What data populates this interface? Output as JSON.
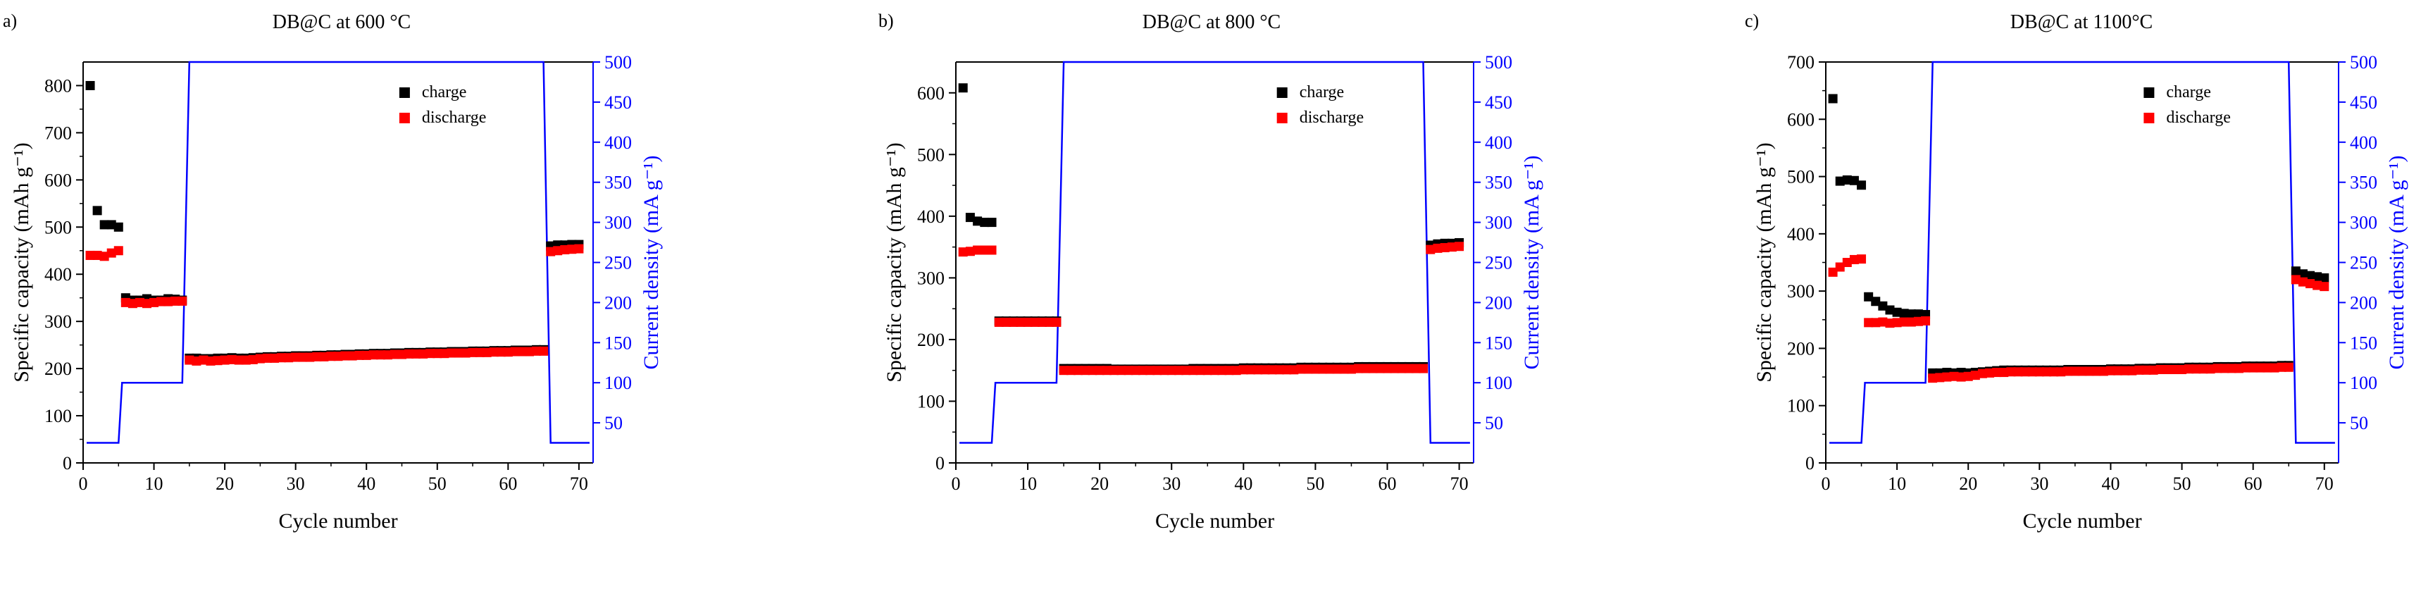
{
  "colors": {
    "charge": "#000000",
    "discharge": "#ff0000",
    "current": "#0000ff",
    "axis": "#000000"
  },
  "chart_data": [
    {
      "type": "scatter",
      "panel_label": "a)",
      "title": "DB@C at 600 °C",
      "xlabel": "Cycle number",
      "ylabel": "Specific capacity (mAh g⁻¹)",
      "y2label": "Current density (mA g⁻¹)",
      "xlim": [
        0,
        72
      ],
      "ylim": [
        0,
        850
      ],
      "y2lim": [
        0,
        500
      ],
      "xticks": [
        0,
        10,
        20,
        30,
        40,
        50,
        60,
        70
      ],
      "yticks": [
        0,
        100,
        200,
        300,
        400,
        500,
        600,
        700,
        800
      ],
      "y2ticks": [
        50,
        100,
        150,
        200,
        250,
        300,
        350,
        400,
        450,
        500
      ],
      "legend": [
        "charge",
        "discharge"
      ],
      "legend_position": "top-right",
      "series": [
        {
          "name": "charge",
          "x": [
            1,
            2,
            3,
            4,
            5,
            6,
            7,
            8,
            9,
            10,
            11,
            12,
            13,
            14,
            15,
            16,
            17,
            18,
            19,
            20,
            21,
            22,
            23,
            24,
            25,
            26,
            27,
            28,
            29,
            30,
            31,
            32,
            33,
            34,
            35,
            36,
            37,
            38,
            39,
            40,
            41,
            42,
            43,
            44,
            45,
            46,
            47,
            48,
            49,
            50,
            51,
            52,
            53,
            54,
            55,
            56,
            57,
            58,
            59,
            60,
            61,
            62,
            63,
            64,
            65,
            66,
            67,
            68,
            69,
            70
          ],
          "y": [
            800,
            535,
            505,
            505,
            500,
            350,
            345,
            345,
            348,
            345,
            345,
            348,
            347,
            345,
            222,
            222,
            221,
            221,
            222,
            222,
            223,
            222,
            222,
            223,
            224,
            225,
            225,
            226,
            226,
            227,
            227,
            227,
            228,
            228,
            229,
            229,
            230,
            230,
            231,
            231,
            232,
            232,
            232,
            233,
            233,
            234,
            234,
            234,
            235,
            235,
            235,
            236,
            236,
            236,
            237,
            237,
            237,
            238,
            238,
            238,
            239,
            239,
            239,
            240,
            240,
            460,
            462,
            462,
            463,
            463
          ]
        },
        {
          "name": "discharge",
          "x": [
            1,
            2,
            3,
            4,
            5,
            6,
            7,
            8,
            9,
            10,
            11,
            12,
            13,
            14,
            15,
            16,
            17,
            18,
            19,
            20,
            21,
            22,
            23,
            24,
            25,
            26,
            27,
            28,
            29,
            30,
            31,
            32,
            33,
            34,
            35,
            36,
            37,
            38,
            39,
            40,
            41,
            42,
            43,
            44,
            45,
            46,
            47,
            48,
            49,
            50,
            51,
            52,
            53,
            54,
            55,
            56,
            57,
            58,
            59,
            60,
            61,
            62,
            63,
            64,
            65,
            66,
            67,
            68,
            69,
            70
          ],
          "y": [
            440,
            440,
            438,
            445,
            450,
            340,
            338,
            340,
            338,
            340,
            342,
            342,
            343,
            343,
            218,
            216,
            218,
            216,
            217,
            218,
            219,
            218,
            218,
            219,
            221,
            222,
            222,
            223,
            223,
            224,
            224,
            224,
            225,
            225,
            226,
            226,
            227,
            227,
            228,
            228,
            229,
            229,
            229,
            230,
            230,
            231,
            231,
            231,
            232,
            232,
            232,
            233,
            233,
            233,
            234,
            234,
            234,
            235,
            235,
            235,
            236,
            236,
            236,
            237,
            237,
            448,
            450,
            452,
            453,
            454
          ]
        },
        {
          "name": "current density",
          "axis": "right",
          "x": [
            0.5,
            5,
            5.5,
            14,
            15,
            65,
            66,
            71.5
          ],
          "y": [
            25,
            25,
            100,
            100,
            500,
            500,
            25,
            25
          ]
        }
      ]
    },
    {
      "type": "scatter",
      "panel_label": "b)",
      "title": "DB@C at 800 °C",
      "xlabel": "Cycle number",
      "ylabel": "Specific capacity (mAh g⁻¹)",
      "y2label": "Current density (mA g⁻¹)",
      "xlim": [
        0,
        72
      ],
      "ylim": [
        0,
        650
      ],
      "y2lim": [
        0,
        500
      ],
      "xticks": [
        0,
        10,
        20,
        30,
        40,
        50,
        60,
        70
      ],
      "yticks": [
        0,
        100,
        200,
        300,
        400,
        500,
        600
      ],
      "y2ticks": [
        50,
        100,
        150,
        200,
        250,
        300,
        350,
        400,
        450,
        500
      ],
      "legend": [
        "charge",
        "discharge"
      ],
      "legend_position": "top-right",
      "series": [
        {
          "name": "charge",
          "x": [
            1,
            2,
            3,
            4,
            5,
            6,
            7,
            8,
            9,
            10,
            11,
            12,
            13,
            14,
            15,
            16,
            17,
            18,
            19,
            20,
            21,
            22,
            23,
            24,
            25,
            26,
            27,
            28,
            29,
            30,
            31,
            32,
            33,
            34,
            35,
            36,
            37,
            38,
            39,
            40,
            41,
            42,
            43,
            44,
            45,
            46,
            47,
            48,
            49,
            50,
            51,
            52,
            53,
            54,
            55,
            56,
            57,
            58,
            59,
            60,
            61,
            62,
            63,
            64,
            65,
            66,
            67,
            68,
            69,
            70
          ],
          "y": [
            608,
            398,
            392,
            390,
            390,
            230,
            230,
            230,
            230,
            230,
            230,
            230,
            230,
            230,
            153,
            153,
            153,
            153,
            153,
            153,
            153,
            152,
            152,
            152,
            152,
            152,
            152,
            152,
            152,
            152,
            152,
            152,
            153,
            153,
            153,
            153,
            153,
            153,
            153,
            154,
            154,
            154,
            154,
            154,
            154,
            154,
            154,
            155,
            155,
            155,
            155,
            155,
            155,
            155,
            155,
            156,
            156,
            156,
            156,
            156,
            156,
            156,
            156,
            156,
            156,
            353,
            355,
            356,
            356,
            357
          ]
        },
        {
          "name": "discharge",
          "x": [
            1,
            2,
            3,
            4,
            5,
            6,
            7,
            8,
            9,
            10,
            11,
            12,
            13,
            14,
            15,
            16,
            17,
            18,
            19,
            20,
            21,
            22,
            23,
            24,
            25,
            26,
            27,
            28,
            29,
            30,
            31,
            32,
            33,
            34,
            35,
            36,
            37,
            38,
            39,
            40,
            41,
            42,
            43,
            44,
            45,
            46,
            47,
            48,
            49,
            50,
            51,
            52,
            53,
            54,
            55,
            56,
            57,
            58,
            59,
            60,
            61,
            62,
            63,
            64,
            65,
            66,
            67,
            68,
            69,
            70
          ],
          "y": [
            342,
            343,
            345,
            345,
            345,
            228,
            228,
            228,
            228,
            228,
            228,
            228,
            228,
            228,
            150,
            150,
            150,
            150,
            150,
            150,
            150,
            150,
            150,
            150,
            150,
            150,
            150,
            150,
            150,
            150,
            150,
            150,
            150,
            150,
            150,
            150,
            150,
            150,
            150,
            151,
            151,
            151,
            151,
            151,
            151,
            151,
            151,
            152,
            152,
            152,
            152,
            152,
            152,
            152,
            152,
            153,
            153,
            153,
            153,
            153,
            153,
            153,
            153,
            153,
            153,
            346,
            348,
            349,
            350,
            351
          ]
        },
        {
          "name": "current density",
          "axis": "right",
          "x": [
            0.5,
            5,
            5.5,
            14,
            15,
            65,
            66,
            71.5
          ],
          "y": [
            25,
            25,
            100,
            100,
            500,
            500,
            25,
            25
          ]
        }
      ]
    },
    {
      "type": "scatter",
      "panel_label": "c)",
      "title": "DB@C at 1100°C",
      "xlabel": "Cycle number",
      "ylabel": "Specific capacity (mAh g⁻¹)",
      "y2label": "Current density (mA g⁻¹)",
      "xlim": [
        0,
        72
      ],
      "ylim": [
        0,
        700
      ],
      "y2lim": [
        0,
        500
      ],
      "xticks": [
        0,
        10,
        20,
        30,
        40,
        50,
        60,
        70
      ],
      "yticks": [
        0,
        100,
        200,
        300,
        400,
        500,
        600,
        700
      ],
      "y2ticks": [
        50,
        100,
        150,
        200,
        250,
        300,
        350,
        400,
        450,
        500
      ],
      "legend": [
        "charge",
        "discharge"
      ],
      "legend_position": "top-right",
      "series": [
        {
          "name": "charge",
          "x": [
            1,
            2,
            3,
            4,
            5,
            6,
            7,
            8,
            9,
            10,
            11,
            12,
            13,
            14,
            15,
            16,
            17,
            18,
            19,
            20,
            21,
            22,
            23,
            24,
            25,
            26,
            27,
            28,
            29,
            30,
            31,
            32,
            33,
            34,
            35,
            36,
            37,
            38,
            39,
            40,
            41,
            42,
            43,
            44,
            45,
            46,
            47,
            48,
            49,
            50,
            51,
            52,
            53,
            54,
            55,
            56,
            57,
            58,
            59,
            60,
            61,
            62,
            63,
            64,
            65,
            66,
            67,
            68,
            69,
            70
          ],
          "y": [
            636,
            492,
            494,
            493,
            485,
            290,
            282,
            274,
            267,
            263,
            261,
            260,
            260,
            259,
            157,
            157,
            158,
            157,
            158,
            157,
            158,
            159,
            160,
            161,
            162,
            162,
            162,
            162,
            162,
            162,
            162,
            162,
            162,
            163,
            163,
            163,
            163,
            163,
            163,
            164,
            164,
            164,
            164,
            165,
            165,
            165,
            166,
            166,
            166,
            166,
            167,
            167,
            167,
            167,
            168,
            168,
            168,
            168,
            169,
            169,
            169,
            169,
            169,
            170,
            170,
            335,
            330,
            327,
            325,
            323
          ]
        },
        {
          "name": "discharge",
          "x": [
            1,
            2,
            3,
            4,
            5,
            6,
            7,
            8,
            9,
            10,
            11,
            12,
            13,
            14,
            15,
            16,
            17,
            18,
            19,
            20,
            21,
            22,
            23,
            24,
            25,
            26,
            27,
            28,
            29,
            30,
            31,
            32,
            33,
            34,
            35,
            36,
            37,
            38,
            39,
            40,
            41,
            42,
            43,
            44,
            45,
            46,
            47,
            48,
            49,
            50,
            51,
            52,
            53,
            54,
            55,
            56,
            57,
            58,
            59,
            60,
            61,
            62,
            63,
            64,
            65,
            66,
            67,
            68,
            69,
            70
          ],
          "y": [
            333,
            342,
            350,
            355,
            356,
            245,
            245,
            246,
            244,
            245,
            246,
            246,
            247,
            248,
            148,
            149,
            150,
            151,
            150,
            151,
            153,
            156,
            157,
            158,
            158,
            159,
            159,
            159,
            159,
            159,
            159,
            159,
            159,
            160,
            160,
            160,
            160,
            160,
            160,
            161,
            161,
            161,
            161,
            162,
            162,
            162,
            163,
            163,
            163,
            163,
            164,
            164,
            164,
            164,
            165,
            165,
            165,
            165,
            166,
            166,
            166,
            166,
            166,
            167,
            167,
            320,
            316,
            313,
            310,
            308
          ]
        },
        {
          "name": "current density",
          "axis": "right",
          "x": [
            0.5,
            5,
            5.5,
            14,
            15,
            65,
            66,
            71.5
          ],
          "y": [
            25,
            25,
            100,
            100,
            500,
            500,
            25,
            25
          ]
        }
      ]
    }
  ]
}
